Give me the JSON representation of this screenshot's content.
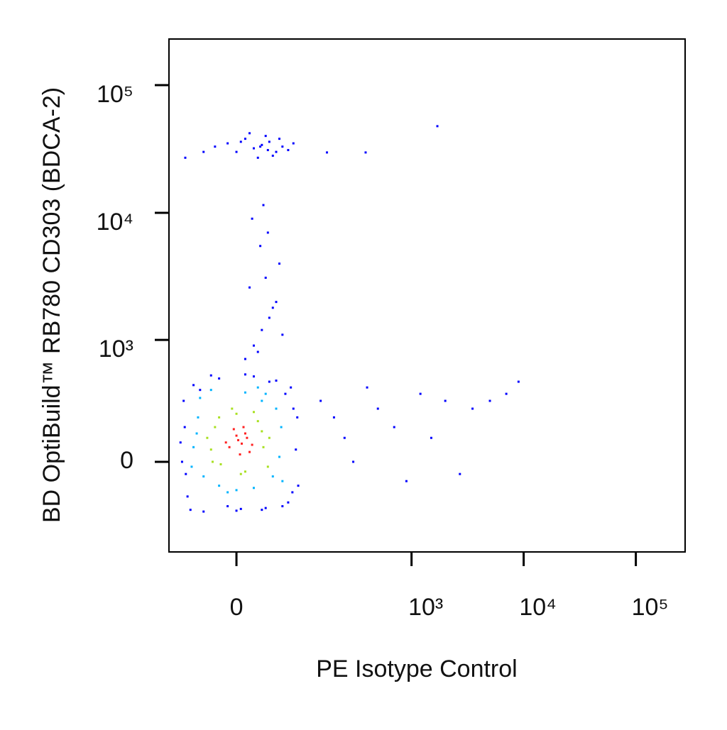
{
  "chart_data": {
    "type": "scatter",
    "xlabel": "PE Isotype Control",
    "ylabel": "BD OptiBuild™ RB780 CD303 (BDCA-2)",
    "xscale": "biexponential",
    "yscale": "biexponential",
    "xlim": [
      -103,
      275000
    ],
    "ylim": [
      -549,
      229500
    ],
    "xticks": [
      0,
      {
        "value": 1000,
        "label": "10³"
      },
      {
        "value": 10000,
        "label": "10⁴"
      },
      {
        "value": 100000,
        "label": "10⁵"
      }
    ],
    "yticks": [
      0,
      {
        "value": 1000,
        "label": "10³"
      },
      {
        "value": 10000,
        "label": "10⁴"
      },
      {
        "value": 100000,
        "label": "10⁵"
      }
    ],
    "series": [
      {
        "color": "#0000ff",
        "x": [
          -75,
          -70,
          -65,
          -72,
          85,
          90,
          80,
          75,
          -60,
          -40,
          0,
          30,
          60,
          -20,
          20,
          50,
          -55,
          70,
          -68,
          88,
          10,
          -30,
          40,
          65,
          -10,
          5,
          35,
          -45,
          78,
          -78,
          10,
          20,
          30,
          40,
          50,
          15,
          35,
          25,
          45,
          55,
          28,
          38,
          18,
          60,
          32,
          -25,
          -10,
          0,
          10,
          20,
          30,
          40,
          50,
          60,
          70,
          80,
          15,
          25,
          35,
          45,
          5,
          55,
          28,
          38,
          -40,
          -69,
          1700,
          172,
          388,
          150,
          200,
          250,
          300,
          400,
          500,
          700,
          900,
          1200,
          1500,
          2000,
          2700,
          3500,
          5000,
          9000,
          7000
        ],
        "values": [
          0,
          150,
          -150,
          300,
          50,
          -100,
          250,
          400,
          -220,
          -230,
          -225,
          -220,
          -200,
          480,
          500,
          460,
          420,
          -180,
          -50,
          200,
          520,
          510,
          450,
          350,
          -200,
          -215,
          -210,
          380,
          -130,
          80,
          700,
          900,
          1200,
          1500,
          2000,
          2600,
          3100,
          800,
          1800,
          4000,
          5500,
          7000,
          9000,
          1100,
          11500,
          33000,
          35000,
          30000,
          38000,
          32000,
          34000,
          36000,
          30000,
          33000,
          31000,
          35000,
          42000,
          27000,
          40000,
          28000,
          36000,
          38000,
          33000,
          31000,
          30000,
          27000,
          47700,
          29700,
          29700,
          300,
          200,
          100,
          0,
          400,
          250,
          150,
          -80,
          350,
          100,
          300,
          -50,
          250,
          300,
          450,
          350
        ]
      },
      {
        "color": "#00b4ff",
        "x": [
          -55,
          -48,
          -40,
          50,
          55,
          60,
          -45,
          -20,
          0,
          20,
          35,
          -30,
          10,
          45,
          -50,
          30,
          -10,
          25,
          58,
          -58
        ],
        "values": [
          60,
          200,
          -60,
          250,
          20,
          -80,
          320,
          -100,
          -120,
          -110,
          350,
          380,
          360,
          -60,
          120,
          300,
          -130,
          400,
          150,
          -20
        ]
      },
      {
        "color": "#a8e020",
        "x": [
          -30,
          -25,
          -18,
          25,
          32,
          38,
          -35,
          0,
          5,
          -5,
          20,
          30,
          -20,
          10,
          40,
          -28
        ],
        "values": [
          50,
          150,
          -10,
          180,
          60,
          -20,
          100,
          220,
          -50,
          250,
          230,
          130,
          200,
          -40,
          100,
          0
        ]
      },
      {
        "color": "#ff2020",
        "x": [
          -8,
          2,
          10,
          15,
          -3,
          6,
          12,
          -12,
          4,
          18,
          0,
          8
        ],
        "values": [
          60,
          90,
          120,
          40,
          140,
          75,
          100,
          80,
          30,
          70,
          110,
          150
        ]
      }
    ]
  }
}
